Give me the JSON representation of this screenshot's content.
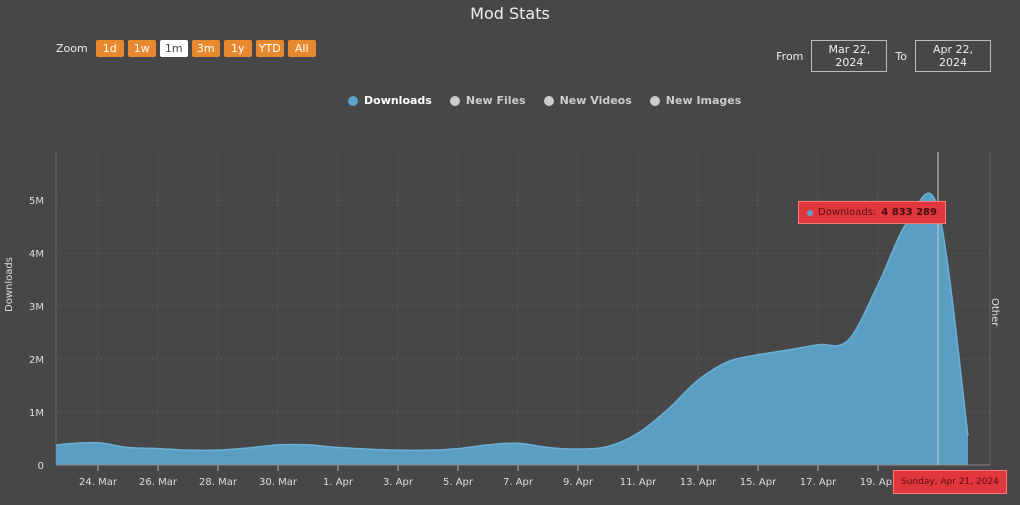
{
  "title": "Mod Stats",
  "zoom": {
    "label": "Zoom",
    "buttons": [
      "1d",
      "1w",
      "1m",
      "3m",
      "1y",
      "YTD",
      "All"
    ],
    "active": "1m"
  },
  "range": {
    "from_label": "From",
    "from": "Mar 22, 2024",
    "to_label": "To",
    "to": "Apr 22, 2024"
  },
  "legend": [
    {
      "label": "Downloads",
      "color": "#5ba3cc",
      "on": true
    },
    {
      "label": "New Files",
      "on": false
    },
    {
      "label": "New Videos",
      "on": false
    },
    {
      "label": "New Images",
      "on": false
    }
  ],
  "tooltip": {
    "series": "Downloads:",
    "value": "4 833 289",
    "date": "Sunday, Apr 21, 2024"
  },
  "chart_data": {
    "type": "area",
    "title": "Mod Stats",
    "ylabel": "Downloads",
    "y2label": "Other",
    "ylim": [
      0,
      6000000
    ],
    "yticks": [
      {
        "v": 0,
        "l": "0"
      },
      {
        "v": 1000000,
        "l": "1M"
      },
      {
        "v": 2000000,
        "l": "2M"
      },
      {
        "v": 3000000,
        "l": "3M"
      },
      {
        "v": 4000000,
        "l": "4M"
      },
      {
        "v": 5000000,
        "l": "5M"
      }
    ],
    "xticks": [
      "24. Mar",
      "26. Mar",
      "28. Mar",
      "30. Mar",
      "1. Apr",
      "3. Apr",
      "5. Apr",
      "7. Apr",
      "9. Apr",
      "11. Apr",
      "13. Apr",
      "15. Apr",
      "17. Apr",
      "19. Apr"
    ],
    "start_date": "2024-03-22",
    "series": [
      {
        "name": "Downloads",
        "color": "#5ba3cc",
        "values": [
          330000,
          400000,
          420000,
          330000,
          310000,
          280000,
          280000,
          320000,
          380000,
          380000,
          330000,
          300000,
          280000,
          280000,
          310000,
          380000,
          410000,
          330000,
          300000,
          350000,
          600000,
          1050000,
          1600000,
          1950000,
          2080000,
          2170000,
          2270000,
          2350000,
          3400000,
          4600000,
          4833289,
          550000
        ]
      }
    ]
  }
}
